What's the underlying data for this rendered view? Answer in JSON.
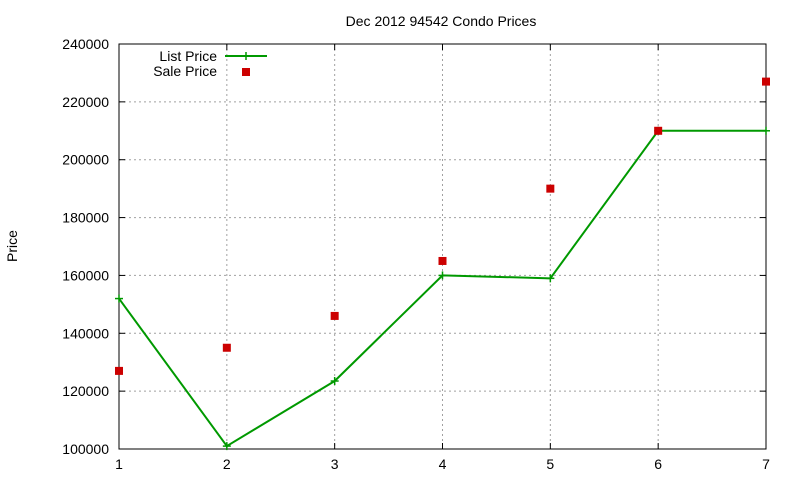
{
  "chart_data": {
    "type": "line",
    "title": "Dec 2012 94542 Condo Prices",
    "xlabel": "",
    "ylabel": "Price",
    "x": [
      1,
      2,
      3,
      4,
      5,
      6,
      7
    ],
    "xlim": [
      1,
      7
    ],
    "ylim": [
      100000,
      240000
    ],
    "x_ticks": [
      "1",
      "2",
      "3",
      "4",
      "5",
      "6",
      "7"
    ],
    "y_ticks": [
      "100000",
      "120000",
      "140000",
      "160000",
      "180000",
      "200000",
      "220000",
      "240000"
    ],
    "grid": true,
    "legend_position": "top-left",
    "series": [
      {
        "name": "List Price",
        "style": "line-with-plus-markers",
        "color": "#009900",
        "values": [
          152000,
          101000,
          123500,
          160000,
          159000,
          210000,
          210000
        ]
      },
      {
        "name": "Sale Price",
        "style": "square-markers",
        "color": "#cc0000",
        "values": [
          127000,
          135000,
          146000,
          165000,
          190000,
          210000,
          227000
        ]
      }
    ]
  }
}
